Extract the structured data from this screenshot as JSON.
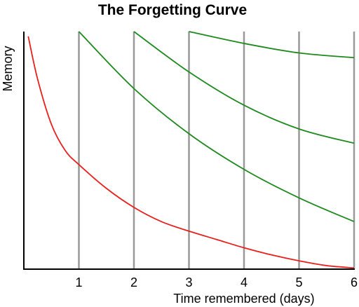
{
  "chart_data": {
    "type": "line",
    "title": "The Forgetting Curve",
    "xlabel": "Time remembered (days)",
    "ylabel": "Memory",
    "xlim": [
      0,
      6
    ],
    "ylim": [
      0,
      1
    ],
    "x_ticks": [
      1,
      2,
      3,
      4,
      5,
      6
    ],
    "review_lines": [
      1,
      2,
      3,
      4,
      5,
      6
    ],
    "grid": false,
    "legend": "none",
    "series": [
      {
        "color": "#e8201b",
        "x": [
          0.08,
          0.25,
          0.5,
          0.75,
          1,
          1.5,
          2,
          2.5,
          3,
          3.5,
          4,
          4.5,
          5,
          5.5,
          6
        ],
        "y": [
          0.98,
          0.8,
          0.61,
          0.5,
          0.44,
          0.34,
          0.26,
          0.2,
          0.16,
          0.125,
          0.09,
          0.06,
          0.035,
          0.015,
          0.005
        ]
      },
      {
        "color": "#1e8a1e",
        "x": [
          1,
          2,
          3,
          4,
          5,
          6
        ],
        "y": [
          1.0,
          0.76,
          0.57,
          0.42,
          0.3,
          0.2
        ]
      },
      {
        "color": "#1e8a1e",
        "x": [
          2,
          3,
          4,
          5,
          6
        ],
        "y": [
          1.0,
          0.83,
          0.69,
          0.59,
          0.53
        ]
      },
      {
        "color": "#1e8a1e",
        "x": [
          3,
          4,
          5,
          6
        ],
        "y": [
          1.0,
          0.95,
          0.91,
          0.89
        ]
      }
    ],
    "colors": {
      "axis": "#000000",
      "review_line": "#999999"
    }
  }
}
